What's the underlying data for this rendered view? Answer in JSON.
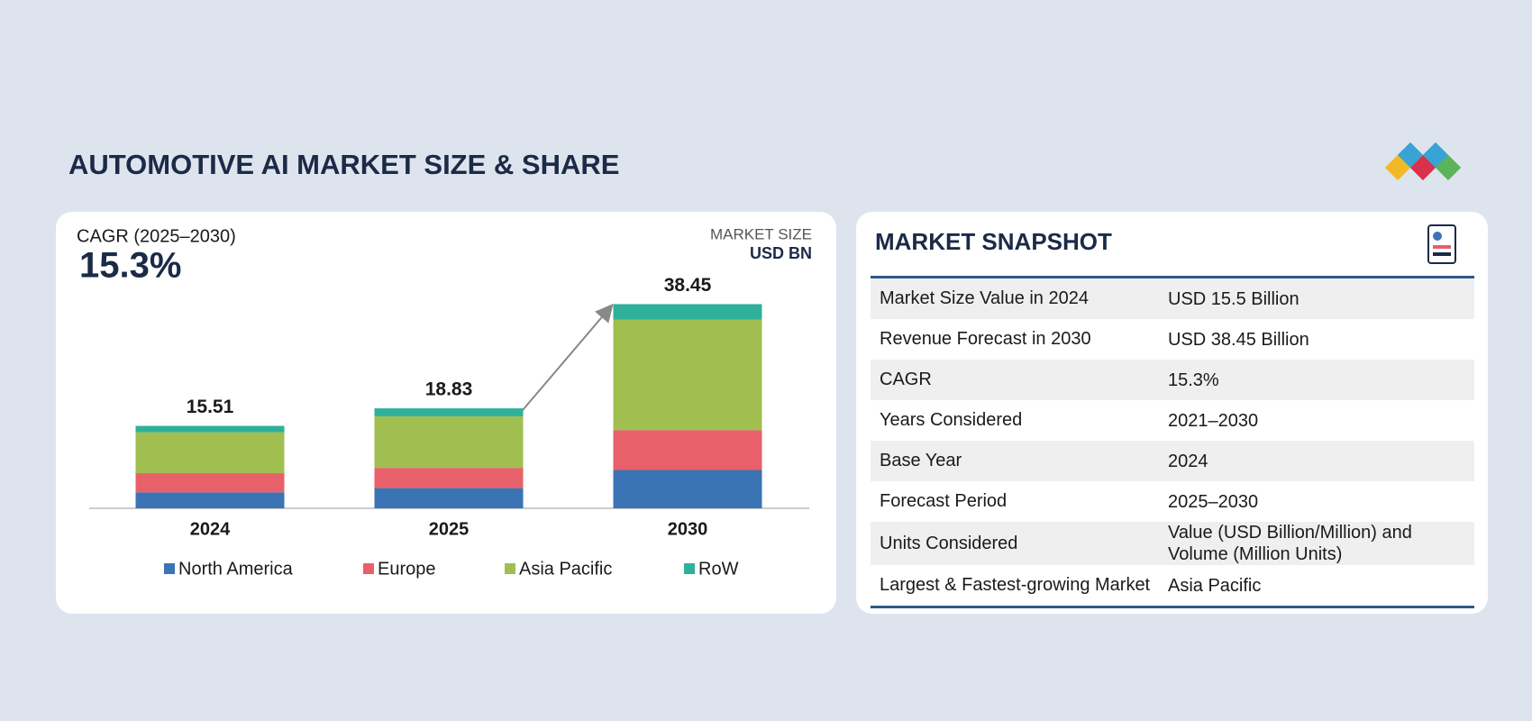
{
  "header": {
    "title": "AUTOMOTIVE AI MARKET SIZE & SHARE"
  },
  "chart_data": {
    "type": "stacked_bar",
    "cagr_label": "CAGR (2025–2030)",
    "cagr_value": "15.3%",
    "unit_label": "MARKET SIZE",
    "unit": "USD BN",
    "categories": [
      "2024",
      "2025",
      "2030"
    ],
    "totals": [
      15.51,
      18.83,
      38.45
    ],
    "series": [
      {
        "name": "North America",
        "color": "#3a74b5",
        "values": [
          3.0,
          3.8,
          7.2
        ]
      },
      {
        "name": "Europe",
        "color": "#e8606a",
        "values": [
          3.6,
          3.8,
          7.5
        ]
      },
      {
        "name": "Asia Pacific",
        "color": "#a0bf50",
        "values": [
          7.7,
          9.7,
          20.8
        ]
      },
      {
        "name": "RoW",
        "color": "#2fb09a",
        "values": [
          1.2,
          1.5,
          2.9
        ]
      }
    ],
    "ylim": [
      0,
      40
    ]
  },
  "snapshot": {
    "title": "MARKET SNAPSHOT",
    "rows": [
      [
        "Market Size Value in 2024",
        "USD 15.5 Billion"
      ],
      [
        "Revenue Forecast in 2030",
        "USD 38.45 Billion"
      ],
      [
        "CAGR",
        "15.3%"
      ],
      [
        "Years Considered",
        "2021–2030"
      ],
      [
        "Base Year",
        "2024"
      ],
      [
        "Forecast Period",
        "2025–2030"
      ],
      [
        "Units Considered",
        "Value (USD Billion/Million) and Volume (Million Units)"
      ],
      [
        "Largest & Fastest-growing Market",
        "Asia Pacific"
      ]
    ]
  }
}
